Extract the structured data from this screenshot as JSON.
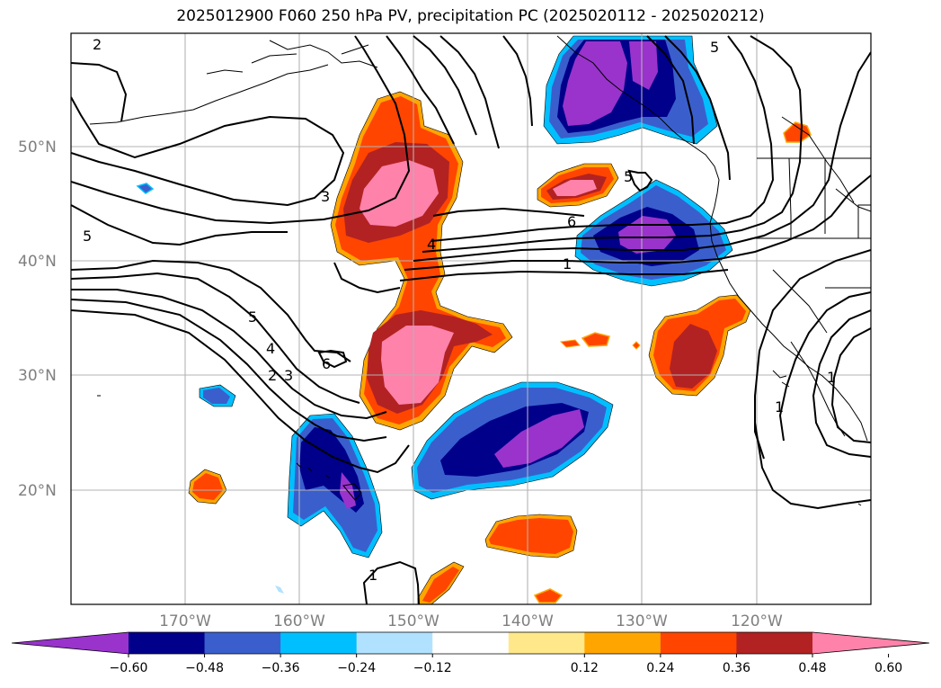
{
  "title": "2025012900 F060 250 hPa PV, precipitation PC (2025020112 - 2025020212)",
  "map": {
    "projection": "PlateCarree",
    "lon_range": [
      -180,
      -110
    ],
    "lat_range": [
      10,
      60
    ],
    "coastlines": true,
    "grid": true,
    "lat_labels": [
      "50°N",
      "40°N",
      "30°N",
      "20°N"
    ],
    "lon_labels": [
      "170°W",
      "160°W",
      "150°W",
      "140°W",
      "130°W",
      "120°W"
    ],
    "fill_field": "precipitation PC",
    "contour_field": "250 hPa PV",
    "contour_labels": [
      "2",
      "3",
      "5",
      "5",
      "4",
      "6",
      "1",
      "5",
      "4",
      "3",
      "2",
      "6",
      "1",
      "1",
      "1",
      "5"
    ]
  },
  "colorbar": {
    "ticks": [
      "−0.60",
      "−0.48",
      "−0.36",
      "−0.24",
      "−0.12",
      "0.12",
      "0.24",
      "0.36",
      "0.48",
      "0.60"
    ],
    "colors": [
      "#9933cc",
      "#00008b",
      "#3a5fcd",
      "#00bfff",
      "#b0e2ff",
      "#ffffff",
      "#ffe88a",
      "#ffa500",
      "#ff4500",
      "#b22222",
      "#ff82ab"
    ],
    "extend": "both"
  }
}
